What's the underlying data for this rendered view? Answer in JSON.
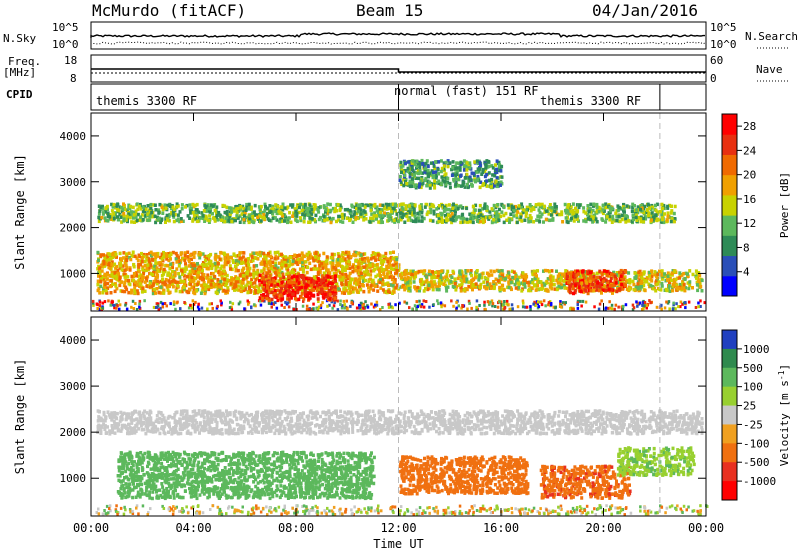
{
  "header": {
    "radar": "McMurdo (fitACF)",
    "beam": "Beam 15",
    "date": "04/Jan/2016"
  },
  "aux_labels": {
    "nsky": "N.Sky",
    "nsky_top": "10^5",
    "nsky_bottom": "10^0",
    "freq": "Freq.",
    "freq_unit": "[MHz]",
    "freq_top": "18",
    "freq_bottom": "8",
    "cpid": "CPID",
    "nsearch": "N.Search",
    "nsearch_top": "10^5",
    "nsearch_bottom": "10^0",
    "nave": "Nave",
    "nave_top": "60",
    "nave_bottom": "0"
  },
  "modes": [
    "themis 3300 RF",
    "normal (fast) 151 RF",
    "themis 3300 RF"
  ],
  "colors": {
    "power_scale": [
      "#0000ff",
      "#2a4fb8",
      "#2e8b57",
      "#5cb85c",
      "#c8d200",
      "#f0a000",
      "#f06a00",
      "#e83010",
      "#ff0000"
    ],
    "velocity_scale": [
      "#2040c0",
      "#2f8a4e",
      "#5cb85c",
      "#98d030",
      "#c8c8c8",
      "#f0a020",
      "#f07010",
      "#e83020",
      "#ff0000"
    ]
  },
  "chart_data": [
    {
      "type": "heatmap",
      "name": "Power",
      "ylabel": "Slant Range [km]",
      "yticks": [
        "1000",
        "2000",
        "3000",
        "4000"
      ],
      "ylim": [
        180,
        4500
      ],
      "colorbar_label": "Power [dB]",
      "colorbar_ticks": [
        "4",
        "8",
        "12",
        "16",
        "20",
        "24",
        "28"
      ],
      "clim": [
        0,
        30
      ],
      "features": [
        {
          "x_start_h": 0.2,
          "x_end_h": 22.8,
          "range_km": [
            2150,
            2550
          ],
          "value_db": 12
        },
        {
          "x_start_h": 0.2,
          "x_end_h": 12.0,
          "range_km": [
            600,
            1500
          ],
          "value_db": 18
        },
        {
          "x_start_h": 6.5,
          "x_end_h": 9.5,
          "range_km": [
            450,
            1000
          ],
          "value_db": 26
        },
        {
          "x_start_h": 12.0,
          "x_end_h": 23.8,
          "range_km": [
            650,
            1100
          ],
          "value_db": 16
        },
        {
          "x_start_h": 18.5,
          "x_end_h": 20.8,
          "range_km": [
            600,
            1100
          ],
          "value_db": 24
        },
        {
          "x_start_h": 12.0,
          "x_end_h": 16.0,
          "range_km": [
            2900,
            3500
          ],
          "value_db": 10
        }
      ]
    },
    {
      "type": "heatmap",
      "name": "Velocity",
      "ylabel": "Slant Range [km]",
      "yticks": [
        "1000",
        "2000",
        "3000",
        "4000"
      ],
      "ylim": [
        180,
        4500
      ],
      "colorbar_label": "Velocity [m s^-1]",
      "colorbar_ticks": [
        "1000",
        "500",
        "100",
        "25",
        "-25",
        "-100",
        "-500",
        "-1000"
      ],
      "features": [
        {
          "x_start_h": 0.2,
          "x_end_h": 23.8,
          "range_km": [
            2000,
            2500
          ],
          "value_ms": 0
        },
        {
          "x_start_h": 1.0,
          "x_end_h": 11.0,
          "range_km": [
            600,
            1600
          ],
          "value_ms": 200
        },
        {
          "x_start_h": 12.0,
          "x_end_h": 17.0,
          "range_km": [
            700,
            1500
          ],
          "value_ms": -300
        },
        {
          "x_start_h": 17.5,
          "x_end_h": 21.0,
          "range_km": [
            600,
            1300
          ],
          "value_ms": -400
        },
        {
          "x_start_h": 20.5,
          "x_end_h": 23.5,
          "range_km": [
            1100,
            1700
          ],
          "value_ms": 80
        }
      ]
    }
  ],
  "xaxis": {
    "ticks": [
      "00:00",
      "04:00",
      "08:00",
      "12:00",
      "16:00",
      "20:00",
      "00:00"
    ],
    "label": "Time UT"
  }
}
